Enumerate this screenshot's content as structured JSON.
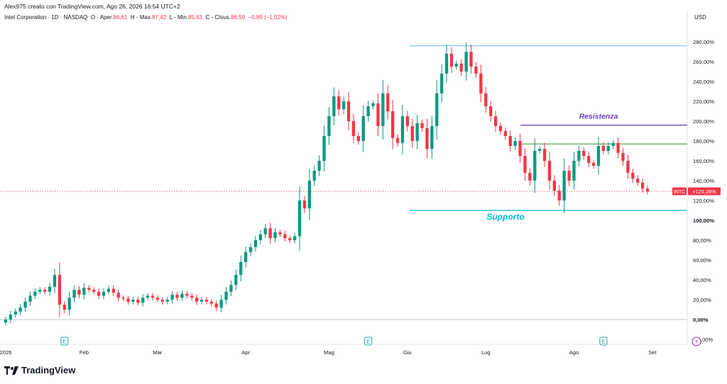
{
  "header": {
    "author_line": "Alex975 creato con TradingView.com, Ago 26, 2026 16:54 UTC+2",
    "symbol_line": "Intel Corporation · 1D · NASDAQ",
    "o_label": "O - Aper.",
    "o_value": "86,61",
    "h_label": "H - Max.",
    "h_value": "87,42",
    "l_label": "L - Min.",
    "l_value": "85,63",
    "c_label": "C - Chius.",
    "c_value": "86,59",
    "change": "−0,89 (−1,02%)"
  },
  "currency": "USD",
  "branding": {
    "name": "TradingView",
    "logo_icon": "tradingview-logo-icon"
  },
  "colors": {
    "up": "#089981",
    "down": "#f23645",
    "resistance": "#673ab7",
    "support": "#00bcd4",
    "green_line": "#43a047",
    "top_line": "#90caf9",
    "earnings": "#26a69a",
    "dividend": "#9c27b0"
  },
  "chart_data": {
    "type": "candlestick",
    "symbol": "INTC",
    "y_scale": "percent",
    "y_ticks": [
      "280,00%",
      "260,00%",
      "240,00%",
      "220,00%",
      "200,00%",
      "180,00%",
      "160,00%",
      "140,00%",
      "120,00%",
      "100,00%",
      "80,00%",
      "60,00%",
      "40,00%",
      "20,00%",
      "0,00%",
      "-20,00%"
    ],
    "ylim": [
      -25,
      292
    ],
    "x_labels": [
      "2026",
      "Feb",
      "Mar",
      "Apr",
      "Mag",
      "Giu",
      "Lug",
      "Ago",
      "Set"
    ],
    "price_badge": {
      "symbol": "INTC",
      "value": "+129,26%",
      "y": 129.26
    },
    "closes": [
      0,
      5,
      8,
      12,
      18,
      24,
      28,
      30,
      28,
      33,
      45,
      15,
      10,
      22,
      30,
      25,
      32,
      30,
      28,
      24,
      28,
      31,
      27,
      22,
      21,
      18,
      20,
      17,
      22,
      24,
      22,
      20,
      18,
      20,
      25,
      22,
      26,
      24,
      22,
      18,
      20,
      18,
      16,
      12,
      20,
      28,
      35,
      45,
      58,
      68,
      73,
      80,
      86,
      92,
      82,
      88,
      86,
      82,
      80,
      84,
      120,
      112,
      140,
      150,
      160,
      185,
      205,
      225,
      212,
      220,
      200,
      185,
      180,
      205,
      215,
      218,
      195,
      228,
      210,
      183,
      178,
      205,
      195,
      180,
      198,
      193,
      172,
      195,
      228,
      248,
      268,
      255,
      258,
      250,
      270,
      255,
      248,
      228,
      215,
      205,
      195,
      190,
      185,
      175,
      180,
      165,
      148,
      140,
      170,
      172,
      160,
      140,
      130,
      120,
      150,
      140,
      160,
      170,
      165,
      158,
      155,
      175,
      170,
      175,
      178,
      168,
      160,
      148,
      142,
      138,
      132,
      129
    ],
    "h_lines": [
      {
        "name": "Resistenza",
        "y": 196
      },
      {
        "name": "Supporto",
        "y": 110
      },
      {
        "name": "green-level",
        "y": 177
      },
      {
        "name": "top-level",
        "y": 276
      }
    ],
    "event_markers": [
      {
        "type": "earnings",
        "label": "E",
        "index": 12
      },
      {
        "type": "earnings",
        "label": "E",
        "index": 74
      },
      {
        "type": "earnings",
        "label": "E",
        "index": 122
      },
      {
        "type": "dividend",
        "label": "⚡",
        "index": 141
      }
    ],
    "grid": false
  }
}
